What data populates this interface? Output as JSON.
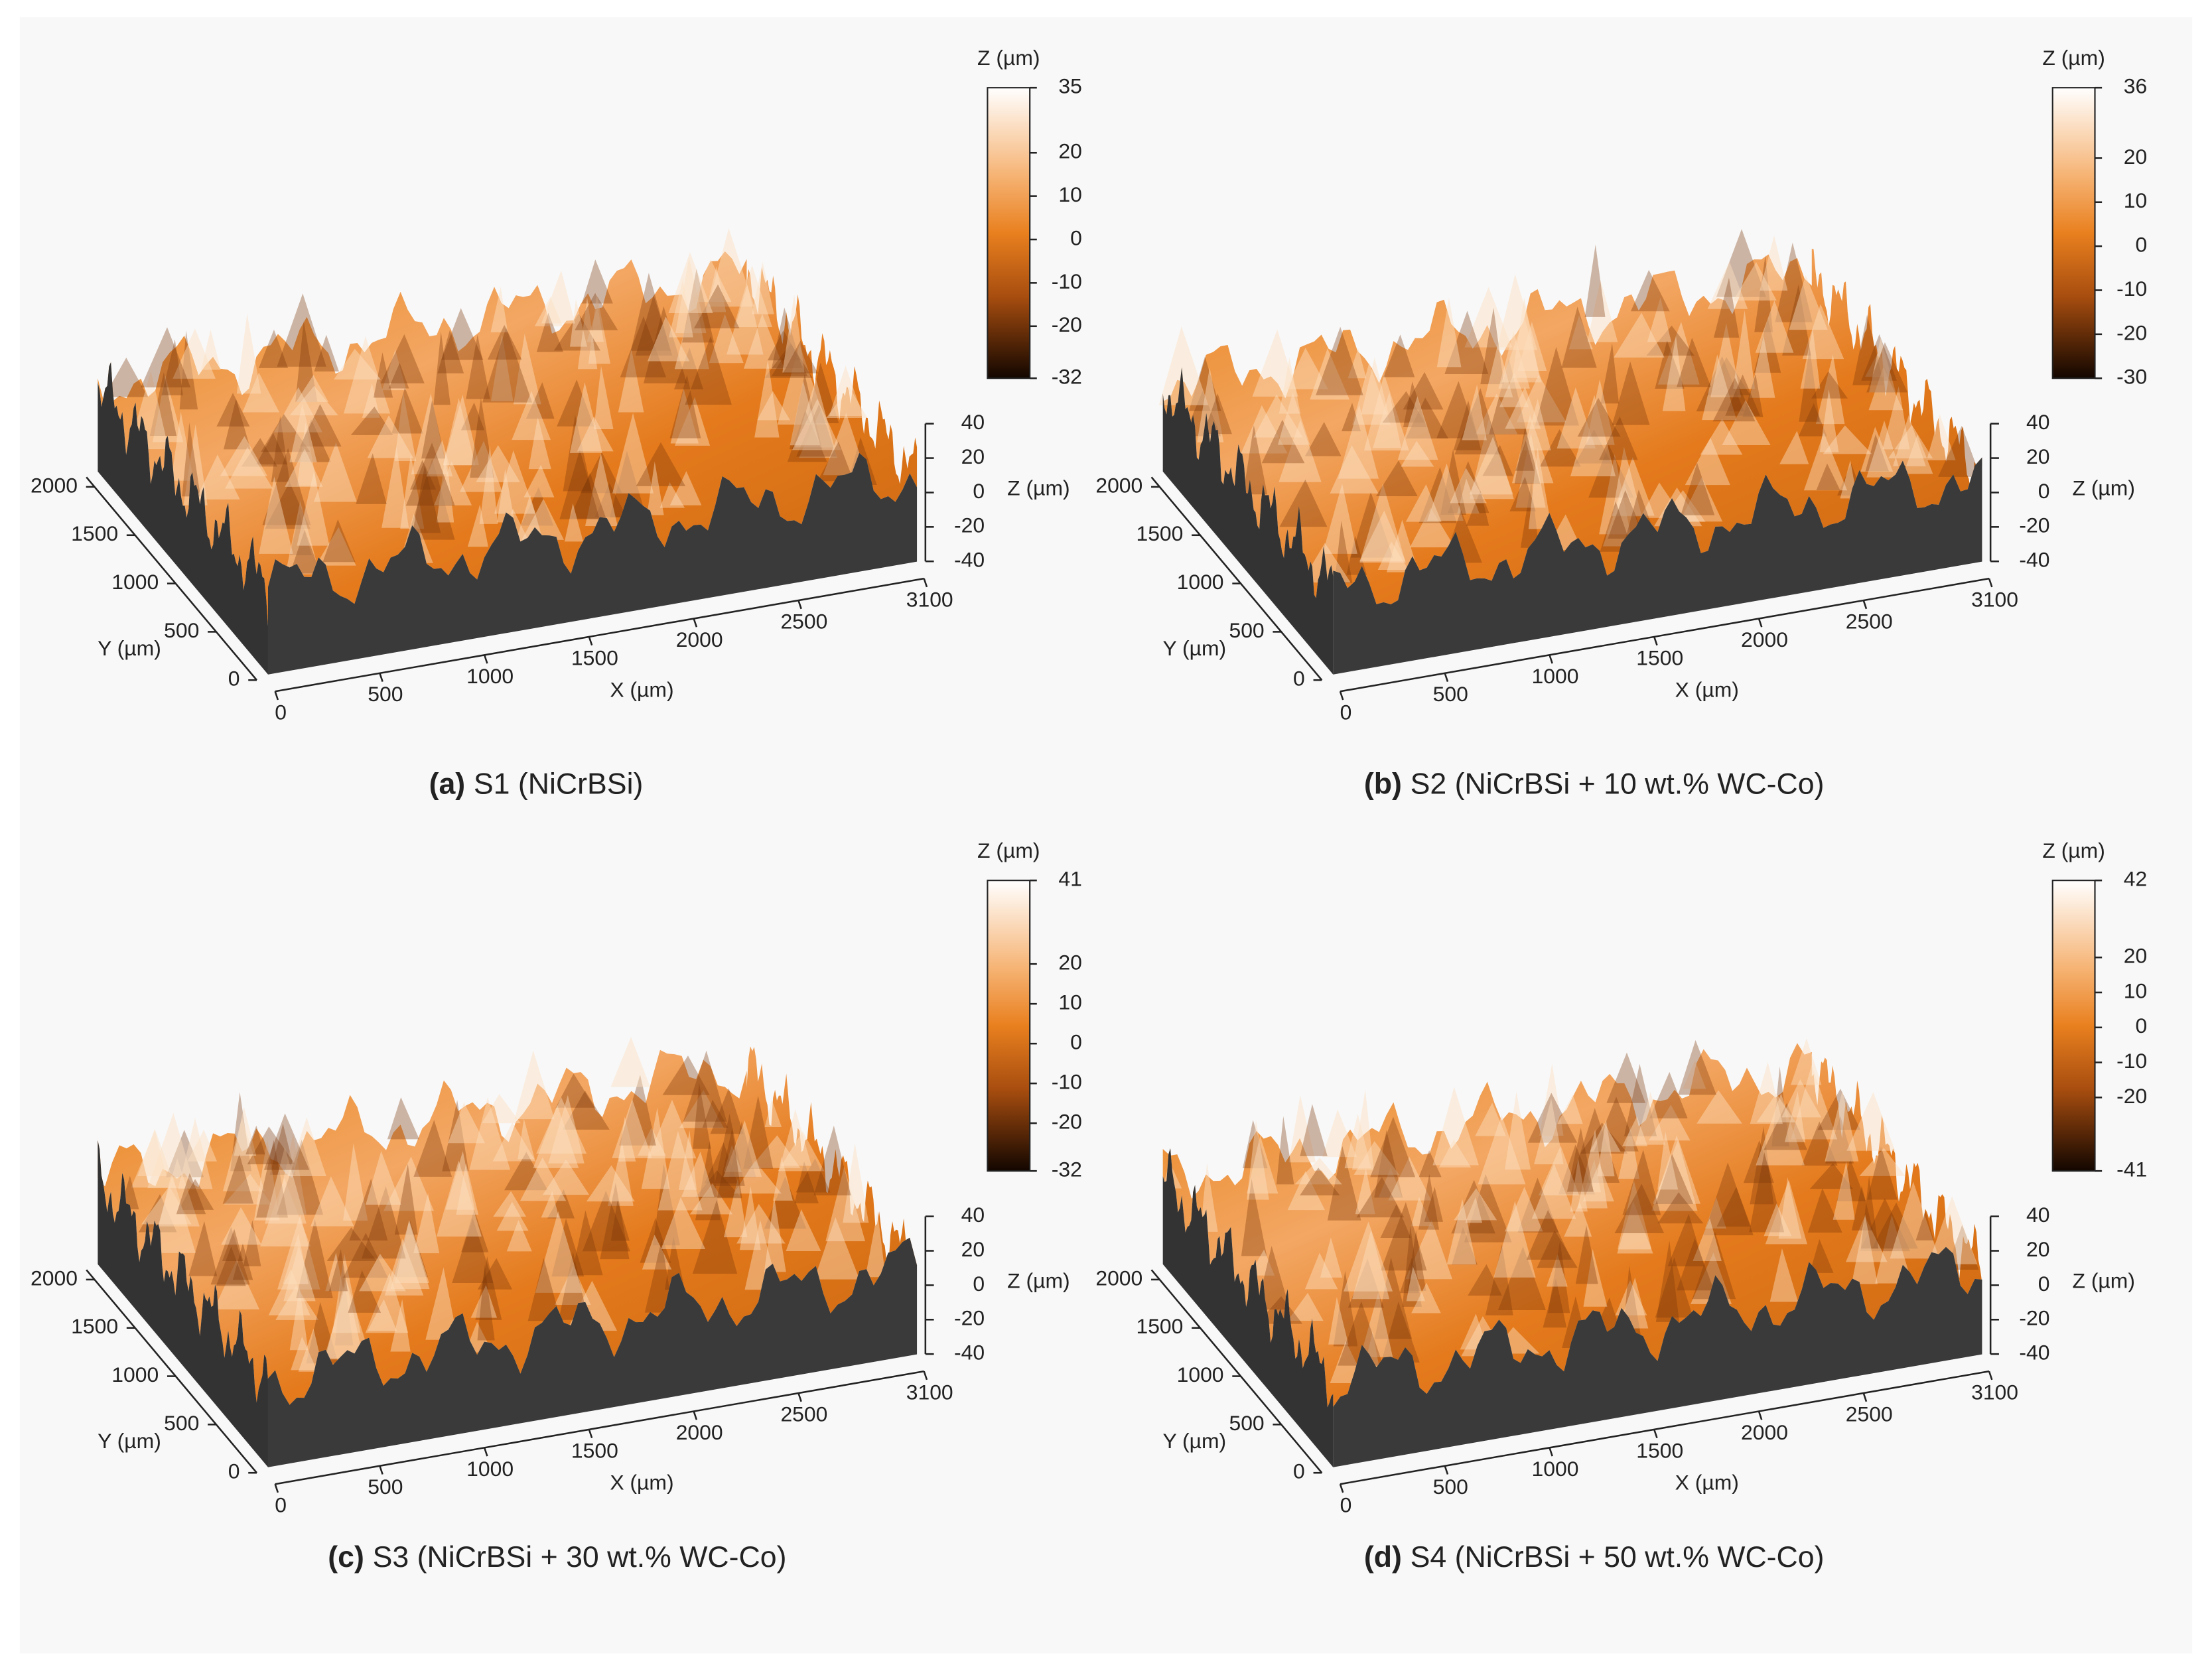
{
  "figure": {
    "panels": [
      {
        "label": "(a)",
        "caption": "S1 (NiCrBSi)",
        "colorbar": {
          "title": "Z (µm)",
          "ticks": [
            35,
            20,
            10,
            0,
            -10,
            -20,
            -32
          ]
        },
        "z_axis": {
          "title": "Z (µm)",
          "ticks": [
            40,
            20,
            0,
            -20,
            -40
          ]
        },
        "x_axis": {
          "title": "X (µm)",
          "ticks": [
            0,
            500,
            1000,
            1500,
            2000,
            2500,
            3100
          ]
        },
        "y_axis": {
          "title": "Y (µm)",
          "ticks": [
            0,
            500,
            1000,
            1500,
            2000
          ]
        }
      },
      {
        "label": "(b)",
        "caption": "S2 (NiCrBSi + 10 wt.% WC-Co)",
        "colorbar": {
          "title": "Z (µm)",
          "ticks": [
            36,
            20,
            10,
            0,
            -10,
            -20,
            -30
          ]
        },
        "z_axis": {
          "title": "Z (µm)",
          "ticks": [
            40,
            20,
            0,
            -20,
            -40
          ]
        },
        "x_axis": {
          "title": "X (µm)",
          "ticks": [
            0,
            500,
            1000,
            1500,
            2000,
            2500,
            3100
          ]
        },
        "y_axis": {
          "title": "Y (µm)",
          "ticks": [
            0,
            500,
            1000,
            1500,
            2000
          ]
        }
      },
      {
        "label": "(c)",
        "caption": "S3 (NiCrBSi + 30 wt.% WC-Co)",
        "colorbar": {
          "title": "Z (µm)",
          "ticks": [
            41,
            20,
            10,
            0,
            -10,
            -20,
            -32
          ]
        },
        "z_axis": {
          "title": "Z (µm)",
          "ticks": [
            40,
            20,
            0,
            -20,
            -40
          ]
        },
        "x_axis": {
          "title": "X (µm)",
          "ticks": [
            0,
            500,
            1000,
            1500,
            2000,
            2500,
            3100
          ]
        },
        "y_axis": {
          "title": "Y (µm)",
          "ticks": [
            0,
            500,
            1000,
            1500,
            2000
          ]
        }
      },
      {
        "label": "(d)",
        "caption": "S4 (NiCrBSi + 50 wt.% WC-Co)",
        "colorbar": {
          "title": "Z (µm)",
          "ticks": [
            42,
            20,
            10,
            0,
            -10,
            -20,
            -41
          ]
        },
        "z_axis": {
          "title": "Z (µm)",
          "ticks": [
            40,
            20,
            0,
            -20,
            -40
          ]
        },
        "x_axis": {
          "title": "X (µm)",
          "ticks": [
            0,
            500,
            1000,
            1500,
            2000,
            2500,
            3100
          ]
        },
        "y_axis": {
          "title": "Y (µm)",
          "ticks": [
            0,
            500,
            1000,
            1500,
            2000
          ]
        }
      }
    ]
  }
}
